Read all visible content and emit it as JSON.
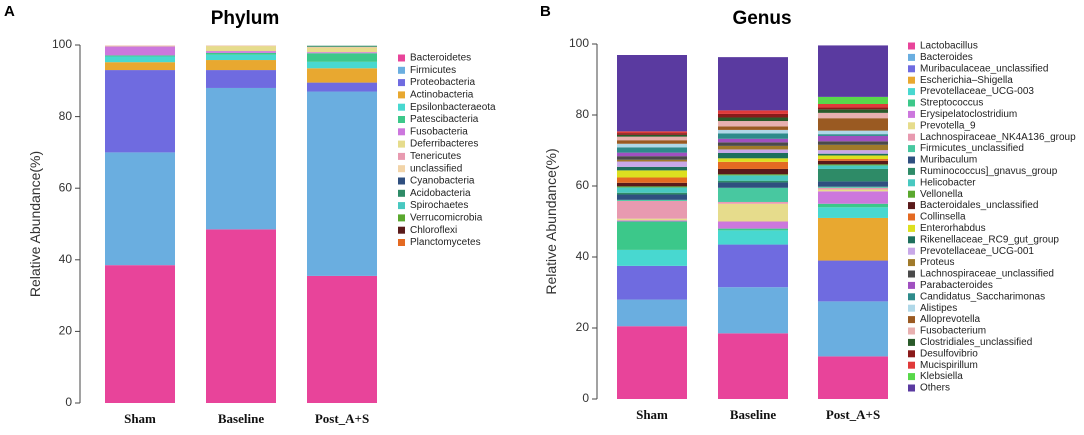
{
  "chart_data": [
    {
      "panel": "A",
      "title": "Phylum",
      "type": "stacked-bar",
      "ylabel": "Relative Abundance(%)",
      "ylim": [
        0,
        100
      ],
      "yticks": [
        0,
        20,
        40,
        60,
        80,
        100
      ],
      "categories": [
        "Sham",
        "Baseline",
        "Post_A+S"
      ],
      "series": [
        {
          "name": "Bacteroidetes",
          "color": "#e8449a",
          "values": [
            38.5,
            48.5,
            35.5
          ]
        },
        {
          "name": "Firmicutes",
          "color": "#6aaee0",
          "values": [
            31.5,
            39.5,
            51.5
          ]
        },
        {
          "name": "Proteobacteria",
          "color": "#6f6be0",
          "values": [
            23.0,
            5.0,
            2.5
          ]
        },
        {
          "name": "Actinobacteria",
          "color": "#e8a830",
          "values": [
            2.2,
            2.8,
            4.0
          ]
        },
        {
          "name": "Epsilonbacteraeota",
          "color": "#48d8d0",
          "values": [
            1.6,
            1.5,
            1.8
          ]
        },
        {
          "name": "Patescibacteria",
          "color": "#3cc88a",
          "values": [
            0.3,
            0.5,
            2.4
          ]
        },
        {
          "name": "Fusobacteria",
          "color": "#cc77dd",
          "values": [
            2.5,
            0.5,
            0.3
          ]
        },
        {
          "name": "Deferribacteres",
          "color": "#e6dc8c",
          "values": [
            0.1,
            1.4,
            1.3
          ]
        },
        {
          "name": "Tenericutes",
          "color": "#e89ab0",
          "values": [
            0.1,
            0.1,
            0.1
          ]
        },
        {
          "name": "unclassified",
          "color": "#f2d4a8",
          "values": [
            0.1,
            0.1,
            0.1
          ]
        },
        {
          "name": "Cyanobacteria",
          "color": "#2f4f7f",
          "values": [
            0.0,
            0.0,
            0.0
          ]
        },
        {
          "name": "Acidobacteria",
          "color": "#2e8b67",
          "values": [
            0.0,
            0.0,
            0.3
          ]
        },
        {
          "name": "Spirochaetes",
          "color": "#48c8c0",
          "values": [
            0.0,
            0.0,
            0.0
          ]
        },
        {
          "name": "Verrucomicrobia",
          "color": "#5aa82e",
          "values": [
            0.0,
            0.0,
            0.0
          ]
        },
        {
          "name": "Chloroflexi",
          "color": "#5a1a1a",
          "values": [
            0.0,
            0.0,
            0.0
          ]
        },
        {
          "name": "Planctomycetes",
          "color": "#e46a22",
          "values": [
            0.0,
            0.0,
            0.0
          ]
        }
      ]
    },
    {
      "panel": "B",
      "title": "Genus",
      "type": "stacked-bar",
      "ylabel": "Relative Abundance(%)",
      "ylim": [
        0,
        100
      ],
      "yticks": [
        0,
        20,
        40,
        60,
        80,
        100
      ],
      "categories": [
        "Sham",
        "Baseline",
        "Post_A+S"
      ],
      "series": [
        {
          "name": "Lactobacillus",
          "color": "#e8449a",
          "values": [
            20.5,
            18.5,
            12.0
          ]
        },
        {
          "name": "Bacteroides",
          "color": "#6aaee0",
          "values": [
            7.5,
            13.0,
            15.5
          ]
        },
        {
          "name": "Muribaculaceae_unclassified",
          "color": "#6f6be0",
          "values": [
            9.5,
            12.0,
            11.5
          ]
        },
        {
          "name": "Escherichia–Shigella",
          "color": "#e8a830",
          "values": [
            0.0,
            0.0,
            12.0
          ]
        },
        {
          "name": "Prevotellaceae_UCG-003",
          "color": "#48d8d0",
          "values": [
            4.5,
            4.0,
            3.0
          ]
        },
        {
          "name": "Streptococcus",
          "color": "#3cc88a",
          "values": [
            8.0,
            0.5,
            1.0
          ]
        },
        {
          "name": "Erysipelatoclostridium",
          "color": "#cc77dd",
          "values": [
            0.3,
            2.0,
            3.5
          ]
        },
        {
          "name": "Prevotella_9",
          "color": "#e6dc8c",
          "values": [
            0.5,
            5.0,
            0.5
          ]
        },
        {
          "name": "Lachnospiraceae_NK4A136_group",
          "color": "#e89ab0",
          "values": [
            5.0,
            0.5,
            0.5
          ]
        },
        {
          "name": "Firmicutes_unclassified",
          "color": "#48c8a0",
          "values": [
            0.3,
            4.0,
            0.3
          ]
        },
        {
          "name": "Muribaculum",
          "color": "#2f4f7f",
          "values": [
            1.5,
            1.5,
            1.5
          ]
        },
        {
          "name": "Ruminococcus]_gnavus_group",
          "color": "#2e8b67",
          "values": [
            0.5,
            0.5,
            3.5
          ]
        },
        {
          "name": "Helicobacter",
          "color": "#48c8c0",
          "values": [
            1.5,
            1.5,
            1.0
          ]
        },
        {
          "name": "Vellonella",
          "color": "#5aa82e",
          "values": [
            0.3,
            0.3,
            0.3
          ]
        },
        {
          "name": "Bacteroidales_unclassified",
          "color": "#5a1a1a",
          "values": [
            1.0,
            1.5,
            1.0
          ]
        },
        {
          "name": "Collinsella",
          "color": "#e46a22",
          "values": [
            1.5,
            2.0,
            0.5
          ]
        },
        {
          "name": "Enterorhabdus",
          "color": "#dde020",
          "values": [
            2.0,
            1.0,
            1.0
          ]
        },
        {
          "name": "Rikenellaceae_RC9_gut_group",
          "color": "#1e6f5c",
          "values": [
            1.0,
            1.5,
            0.5
          ]
        },
        {
          "name": "Prevotellaceae_UCG-001",
          "color": "#c8a8e8",
          "values": [
            1.5,
            1.0,
            1.0
          ]
        },
        {
          "name": "Proteus",
          "color": "#a07a2a",
          "values": [
            0.5,
            1.0,
            1.5
          ]
        },
        {
          "name": "Lachnospiraceae_unclassified",
          "color": "#4a4a4a",
          "values": [
            1.0,
            1.0,
            1.0
          ]
        },
        {
          "name": "Parabacteroides",
          "color": "#a050c0",
          "values": [
            1.0,
            1.0,
            1.5
          ]
        },
        {
          "name": "Candidatus_Saccharimonas",
          "color": "#2e8b8b",
          "values": [
            1.5,
            1.5,
            0.5
          ]
        },
        {
          "name": "Alistipes",
          "color": "#b0d8e8",
          "values": [
            1.0,
            1.0,
            1.0
          ]
        },
        {
          "name": "Alloprevotella",
          "color": "#9a5a22",
          "values": [
            1.0,
            1.0,
            3.5
          ]
        },
        {
          "name": "Fusobacterium",
          "color": "#e8b0b0",
          "values": [
            1.0,
            1.5,
            1.5
          ]
        },
        {
          "name": "Clostridiales_unclassified",
          "color": "#2a5a2a",
          "values": [
            0.5,
            1.0,
            1.0
          ]
        },
        {
          "name": "Desulfovibrio",
          "color": "#8a1a1a",
          "values": [
            0.5,
            1.0,
            0.5
          ]
        },
        {
          "name": "Mucispirillum",
          "color": "#e03a3a",
          "values": [
            0.5,
            1.0,
            1.0
          ]
        },
        {
          "name": "Klebsiella",
          "color": "#58d84a",
          "values": [
            0.0,
            0.0,
            2.0
          ]
        },
        {
          "name": "Others",
          "color": "#5a3aa0",
          "values": [
            21.5,
            15.0,
            14.5
          ]
        }
      ]
    }
  ]
}
